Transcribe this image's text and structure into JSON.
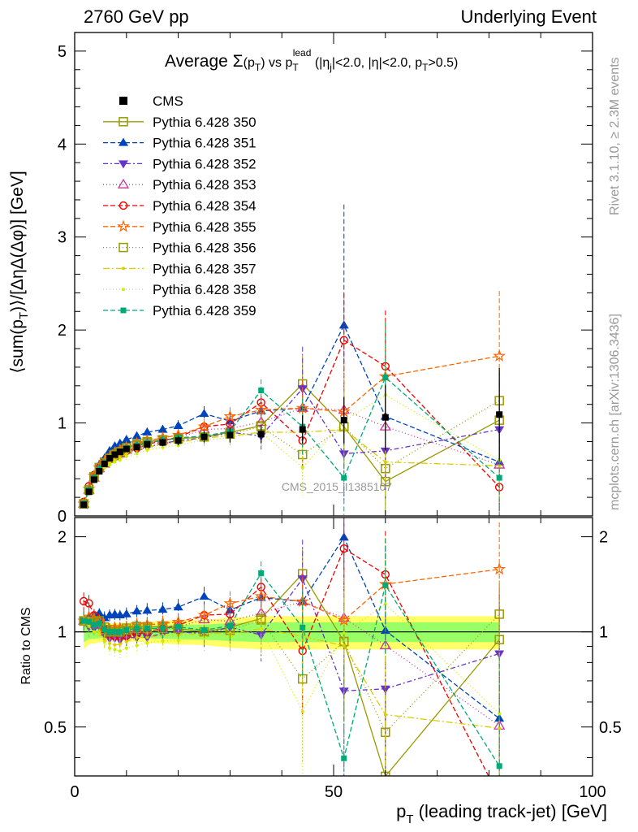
{
  "header": {
    "left": "2760 GeV pp",
    "right": "Underlying Event"
  },
  "side": {
    "rivet": "Rivet 3.1.10, ≥ 2.3M events",
    "mcplots": "mcplots.cern.ch [arXiv:1306.3436]"
  },
  "watermark": "CMS_2015_I1385107",
  "chart_data": {
    "type": "scatter",
    "title": "Average Σ(pT) vs pT lead (|ηj|<2.0, |η|<2.0, pT>0.5)",
    "title_parts": {
      "pre": "Average ",
      "sigma": "Σ",
      "paren": "(p",
      "T": "T",
      "close": ")",
      "vs": " vs p",
      "lead": "lead",
      "cut1": " (|η",
      "j": "j",
      "cut2": "|<2.0, |η|<2.0, p",
      "cut3": ">0.5)"
    },
    "xlabel": {
      "p": "p",
      "sub": "T",
      "rest": " (leading track-jet) [GeV]"
    },
    "ylabel": {
      "pre": "⟨sum(p",
      "sub": "T",
      "post": ")⟩/[ΔηΔ(Δφ)] [GeV]"
    },
    "ratio_ylabel": "Ratio to CMS",
    "xlim": [
      0,
      100
    ],
    "ylim": [
      0,
      5.2
    ],
    "ratio_ylim": [
      0.35,
      2.3
    ],
    "x_ticks": [
      "0",
      "50",
      "100"
    ],
    "y_ticks": [
      "0",
      "1",
      "2",
      "3",
      "4",
      "5"
    ],
    "ratio_ticks": [
      "0.5",
      "1",
      "2"
    ],
    "x": [
      1.75,
      2.75,
      3.75,
      4.75,
      5.75,
      6.75,
      7.75,
      8.75,
      10,
      12,
      14,
      17,
      20,
      25,
      30,
      36,
      44,
      52,
      60,
      82
    ],
    "data": {
      "name": "CMS",
      "values": [
        0.12,
        0.26,
        0.39,
        0.48,
        0.56,
        0.62,
        0.66,
        0.69,
        0.72,
        0.74,
        0.77,
        0.79,
        0.81,
        0.85,
        0.87,
        0.88,
        0.93,
        1.03,
        1.06,
        1.09
      ],
      "errors": [
        0.01,
        0.01,
        0.01,
        0.02,
        0.02,
        0.02,
        0.02,
        0.02,
        0.03,
        0.03,
        0.03,
        0.04,
        0.05,
        0.06,
        0.08,
        0.1,
        0.15,
        0.25,
        0.35,
        0.5
      ],
      "band": [
        0.02,
        0.02,
        0.03,
        0.03,
        0.03,
        0.03,
        0.04,
        0.04,
        0.04,
        0.04,
        0.05,
        0.05,
        0.05,
        0.05,
        0.05,
        0.06,
        0.06,
        0.07,
        0.07,
        0.08
      ]
    },
    "series": [
      {
        "name": "Pythia 6.428 350",
        "color": "#999900",
        "marker": "square-open",
        "dash": "",
        "values": [
          0.13,
          0.28,
          0.42,
          0.52,
          0.58,
          0.63,
          0.67,
          0.7,
          0.74,
          0.77,
          0.8,
          0.82,
          0.83,
          0.85,
          0.9,
          0.97,
          1.42,
          0.96,
          0.37,
          1.03
        ],
        "errors": [
          0.01,
          0.02,
          0.02,
          0.02,
          0.03,
          0.03,
          0.03,
          0.03,
          0.04,
          0.04,
          0.05,
          0.05,
          0.06,
          0.08,
          0.1,
          0.15,
          0.3,
          0.4,
          0.35,
          0.5
        ]
      },
      {
        "name": "Pythia 6.428 351",
        "color": "#0044bb",
        "marker": "triangle-up",
        "dash": "6,3",
        "values": [
          0.13,
          0.29,
          0.44,
          0.55,
          0.62,
          0.7,
          0.75,
          0.78,
          0.82,
          0.86,
          0.9,
          0.93,
          0.97,
          1.1,
          1.02,
          1.13,
          1.16,
          2.05,
          1.07,
          0.58
        ],
        "errors": [
          0.01,
          0.02,
          0.02,
          0.02,
          0.03,
          0.03,
          0.03,
          0.03,
          0.04,
          0.04,
          0.05,
          0.05,
          0.06,
          0.08,
          0.1,
          0.15,
          0.3,
          1.3,
          0.9,
          0.5
        ]
      },
      {
        "name": "Pythia 6.428 352",
        "color": "#6633cc",
        "marker": "triangle-down",
        "dash": "6,3,2,3",
        "values": [
          0.13,
          0.27,
          0.4,
          0.5,
          0.55,
          0.59,
          0.63,
          0.65,
          0.69,
          0.71,
          0.74,
          0.78,
          0.81,
          0.84,
          0.9,
          0.86,
          1.37,
          0.67,
          0.7,
          0.93
        ],
        "errors": [
          0.01,
          0.02,
          0.02,
          0.02,
          0.03,
          0.03,
          0.03,
          0.03,
          0.04,
          0.04,
          0.05,
          0.05,
          0.06,
          0.08,
          0.1,
          0.15,
          0.45,
          0.5,
          0.5,
          0.5
        ]
      },
      {
        "name": "Pythia 6.428 353",
        "color": "#cc3399",
        "marker": "triangle-open",
        "dash": "1,3",
        "values": [
          0.13,
          0.28,
          0.41,
          0.51,
          0.56,
          0.61,
          0.64,
          0.67,
          0.71,
          0.75,
          0.78,
          0.82,
          0.84,
          0.93,
          0.94,
          1.01,
          1.16,
          1.14,
          0.96,
          0.55
        ],
        "errors": [
          0.01,
          0.02,
          0.02,
          0.02,
          0.03,
          0.03,
          0.03,
          0.03,
          0.04,
          0.04,
          0.05,
          0.05,
          0.06,
          0.08,
          0.1,
          0.15,
          0.3,
          0.5,
          0.5,
          0.5
        ]
      },
      {
        "name": "Pythia 6.428 354",
        "color": "#ee0000",
        "marker": "circle-open",
        "dash": "6,3",
        "values": [
          0.15,
          0.32,
          0.44,
          0.52,
          0.57,
          0.61,
          0.64,
          0.67,
          0.7,
          0.73,
          0.77,
          0.81,
          0.85,
          0.96,
          0.99,
          1.22,
          0.81,
          1.89,
          1.61,
          0.31
        ],
        "errors": [
          0.01,
          0.02,
          0.02,
          0.02,
          0.03,
          0.03,
          0.03,
          0.03,
          0.04,
          0.04,
          0.05,
          0.05,
          0.06,
          0.08,
          0.1,
          0.15,
          0.3,
          0.5,
          0.6,
          0.5
        ]
      },
      {
        "name": "Pythia 6.428 355",
        "color": "#ff6600",
        "marker": "star",
        "dash": "6,3",
        "values": [
          0.13,
          0.29,
          0.43,
          0.52,
          0.58,
          0.63,
          0.68,
          0.71,
          0.74,
          0.78,
          0.81,
          0.84,
          0.87,
          0.96,
          1.07,
          1.14,
          1.16,
          1.12,
          1.5,
          1.72
        ],
        "errors": [
          0.01,
          0.02,
          0.02,
          0.02,
          0.03,
          0.03,
          0.03,
          0.03,
          0.04,
          0.04,
          0.05,
          0.05,
          0.06,
          0.08,
          0.1,
          0.15,
          0.3,
          0.5,
          0.6,
          0.7
        ]
      },
      {
        "name": "Pythia 6.428 356",
        "color": "#999900",
        "marker": "square-open",
        "dash": "1,3",
        "values": [
          0.13,
          0.28,
          0.42,
          0.52,
          0.57,
          0.62,
          0.66,
          0.69,
          0.73,
          0.76,
          0.79,
          0.81,
          0.83,
          0.85,
          0.88,
          0.96,
          0.66,
          0.96,
          0.51,
          1.24
        ],
        "errors": [
          0.01,
          0.02,
          0.02,
          0.02,
          0.03,
          0.03,
          0.03,
          0.03,
          0.04,
          0.04,
          0.05,
          0.05,
          0.06,
          0.08,
          0.1,
          0.15,
          0.3,
          0.5,
          0.4,
          0.5
        ]
      },
      {
        "name": "Pythia 6.428 357",
        "color": "#ddcc00",
        "marker": "dot",
        "dash": "8,3,2,3",
        "values": [
          0.13,
          0.27,
          0.39,
          0.48,
          0.53,
          0.57,
          0.6,
          0.63,
          0.67,
          0.71,
          0.74,
          0.77,
          0.79,
          0.84,
          0.86,
          0.9,
          0.9,
          0.93,
          0.58,
          0.54
        ],
        "errors": [
          0.01,
          0.02,
          0.02,
          0.02,
          0.03,
          0.03,
          0.03,
          0.03,
          0.04,
          0.04,
          0.05,
          0.05,
          0.06,
          0.08,
          0.1,
          0.15,
          0.3,
          0.4,
          0.4,
          0.4
        ]
      },
      {
        "name": "Pythia 6.428 358",
        "color": "#ccee00",
        "marker": "dot",
        "dash": "1,3",
        "values": [
          0.13,
          0.27,
          0.39,
          0.47,
          0.52,
          0.55,
          0.58,
          0.6,
          0.64,
          0.67,
          0.71,
          0.74,
          0.76,
          0.82,
          0.84,
          0.9,
          0.52,
          1.02,
          1.3,
          0.6
        ],
        "errors": [
          0.01,
          0.02,
          0.02,
          0.02,
          0.03,
          0.03,
          0.03,
          0.03,
          0.04,
          0.04,
          0.05,
          0.05,
          0.06,
          0.08,
          0.1,
          0.15,
          0.3,
          0.5,
          0.5,
          0.5
        ]
      },
      {
        "name": "Pythia 6.428 359",
        "color": "#00aa77",
        "marker": "square-filled",
        "dash": "6,3",
        "values": [
          0.13,
          0.28,
          0.41,
          0.51,
          0.57,
          0.62,
          0.66,
          0.69,
          0.73,
          0.76,
          0.79,
          0.81,
          0.84,
          0.86,
          0.91,
          1.35,
          0.96,
          0.41,
          1.49,
          0.41
        ],
        "errors": [
          0.01,
          0.02,
          0.02,
          0.02,
          0.03,
          0.03,
          0.03,
          0.03,
          0.04,
          0.04,
          0.05,
          0.05,
          0.06,
          0.08,
          0.1,
          0.12,
          0.3,
          0.4,
          0.6,
          0.5
        ]
      }
    ],
    "colors": {
      "band_inner": "#99ff66",
      "band_outer": "#ffff66"
    }
  }
}
